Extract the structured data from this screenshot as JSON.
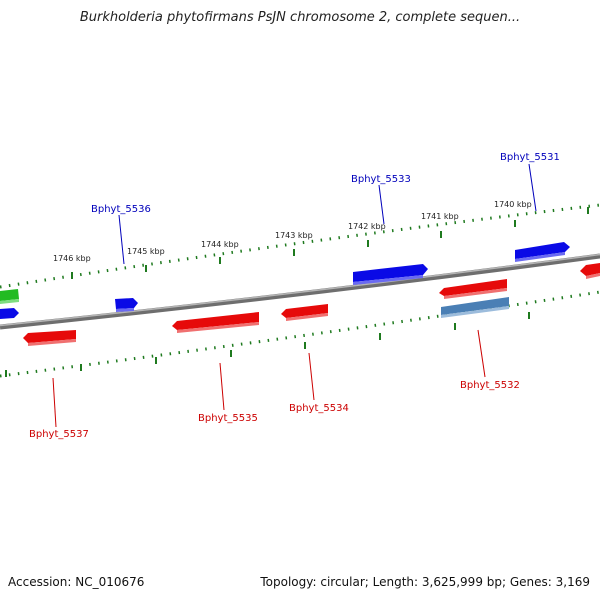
{
  "title": "Burkholderia phytofirmans PsJN chromosome 2, complete sequen...",
  "footer": {
    "accession": "Accession: NC_010676",
    "topology": "Topology: circular; Length: 3,625,999 bp; Genes: 3,169"
  },
  "colors": {
    "forward_gene": "#0a0ae6",
    "reverse_gene": "#e60a0a",
    "other_gene": "#4a7fb5",
    "rna_gene": "#22bb22",
    "backbone": "#8a8a8a",
    "ticks": "#1f7a1f",
    "forward_label": "#0000bb",
    "reverse_label": "#cc0000"
  },
  "ticks": [
    {
      "label": "1746 kbp"
    },
    {
      "label": "1745 kbp"
    },
    {
      "label": "1744 kbp"
    },
    {
      "label": "1743 kbp"
    },
    {
      "label": "1742 kbp"
    },
    {
      "label": "1741 kbp"
    },
    {
      "label": "1740 kbp"
    }
  ],
  "labels": {
    "top": [
      {
        "text": "Bphyt_5536"
      },
      {
        "text": "Bphyt_5533"
      },
      {
        "text": "Bphyt_5531"
      }
    ],
    "bottom": [
      {
        "text": "Bphyt_5537"
      },
      {
        "text": "Bphyt_5535"
      },
      {
        "text": "Bphyt_5534"
      },
      {
        "text": "Bphyt_5532"
      }
    ]
  }
}
